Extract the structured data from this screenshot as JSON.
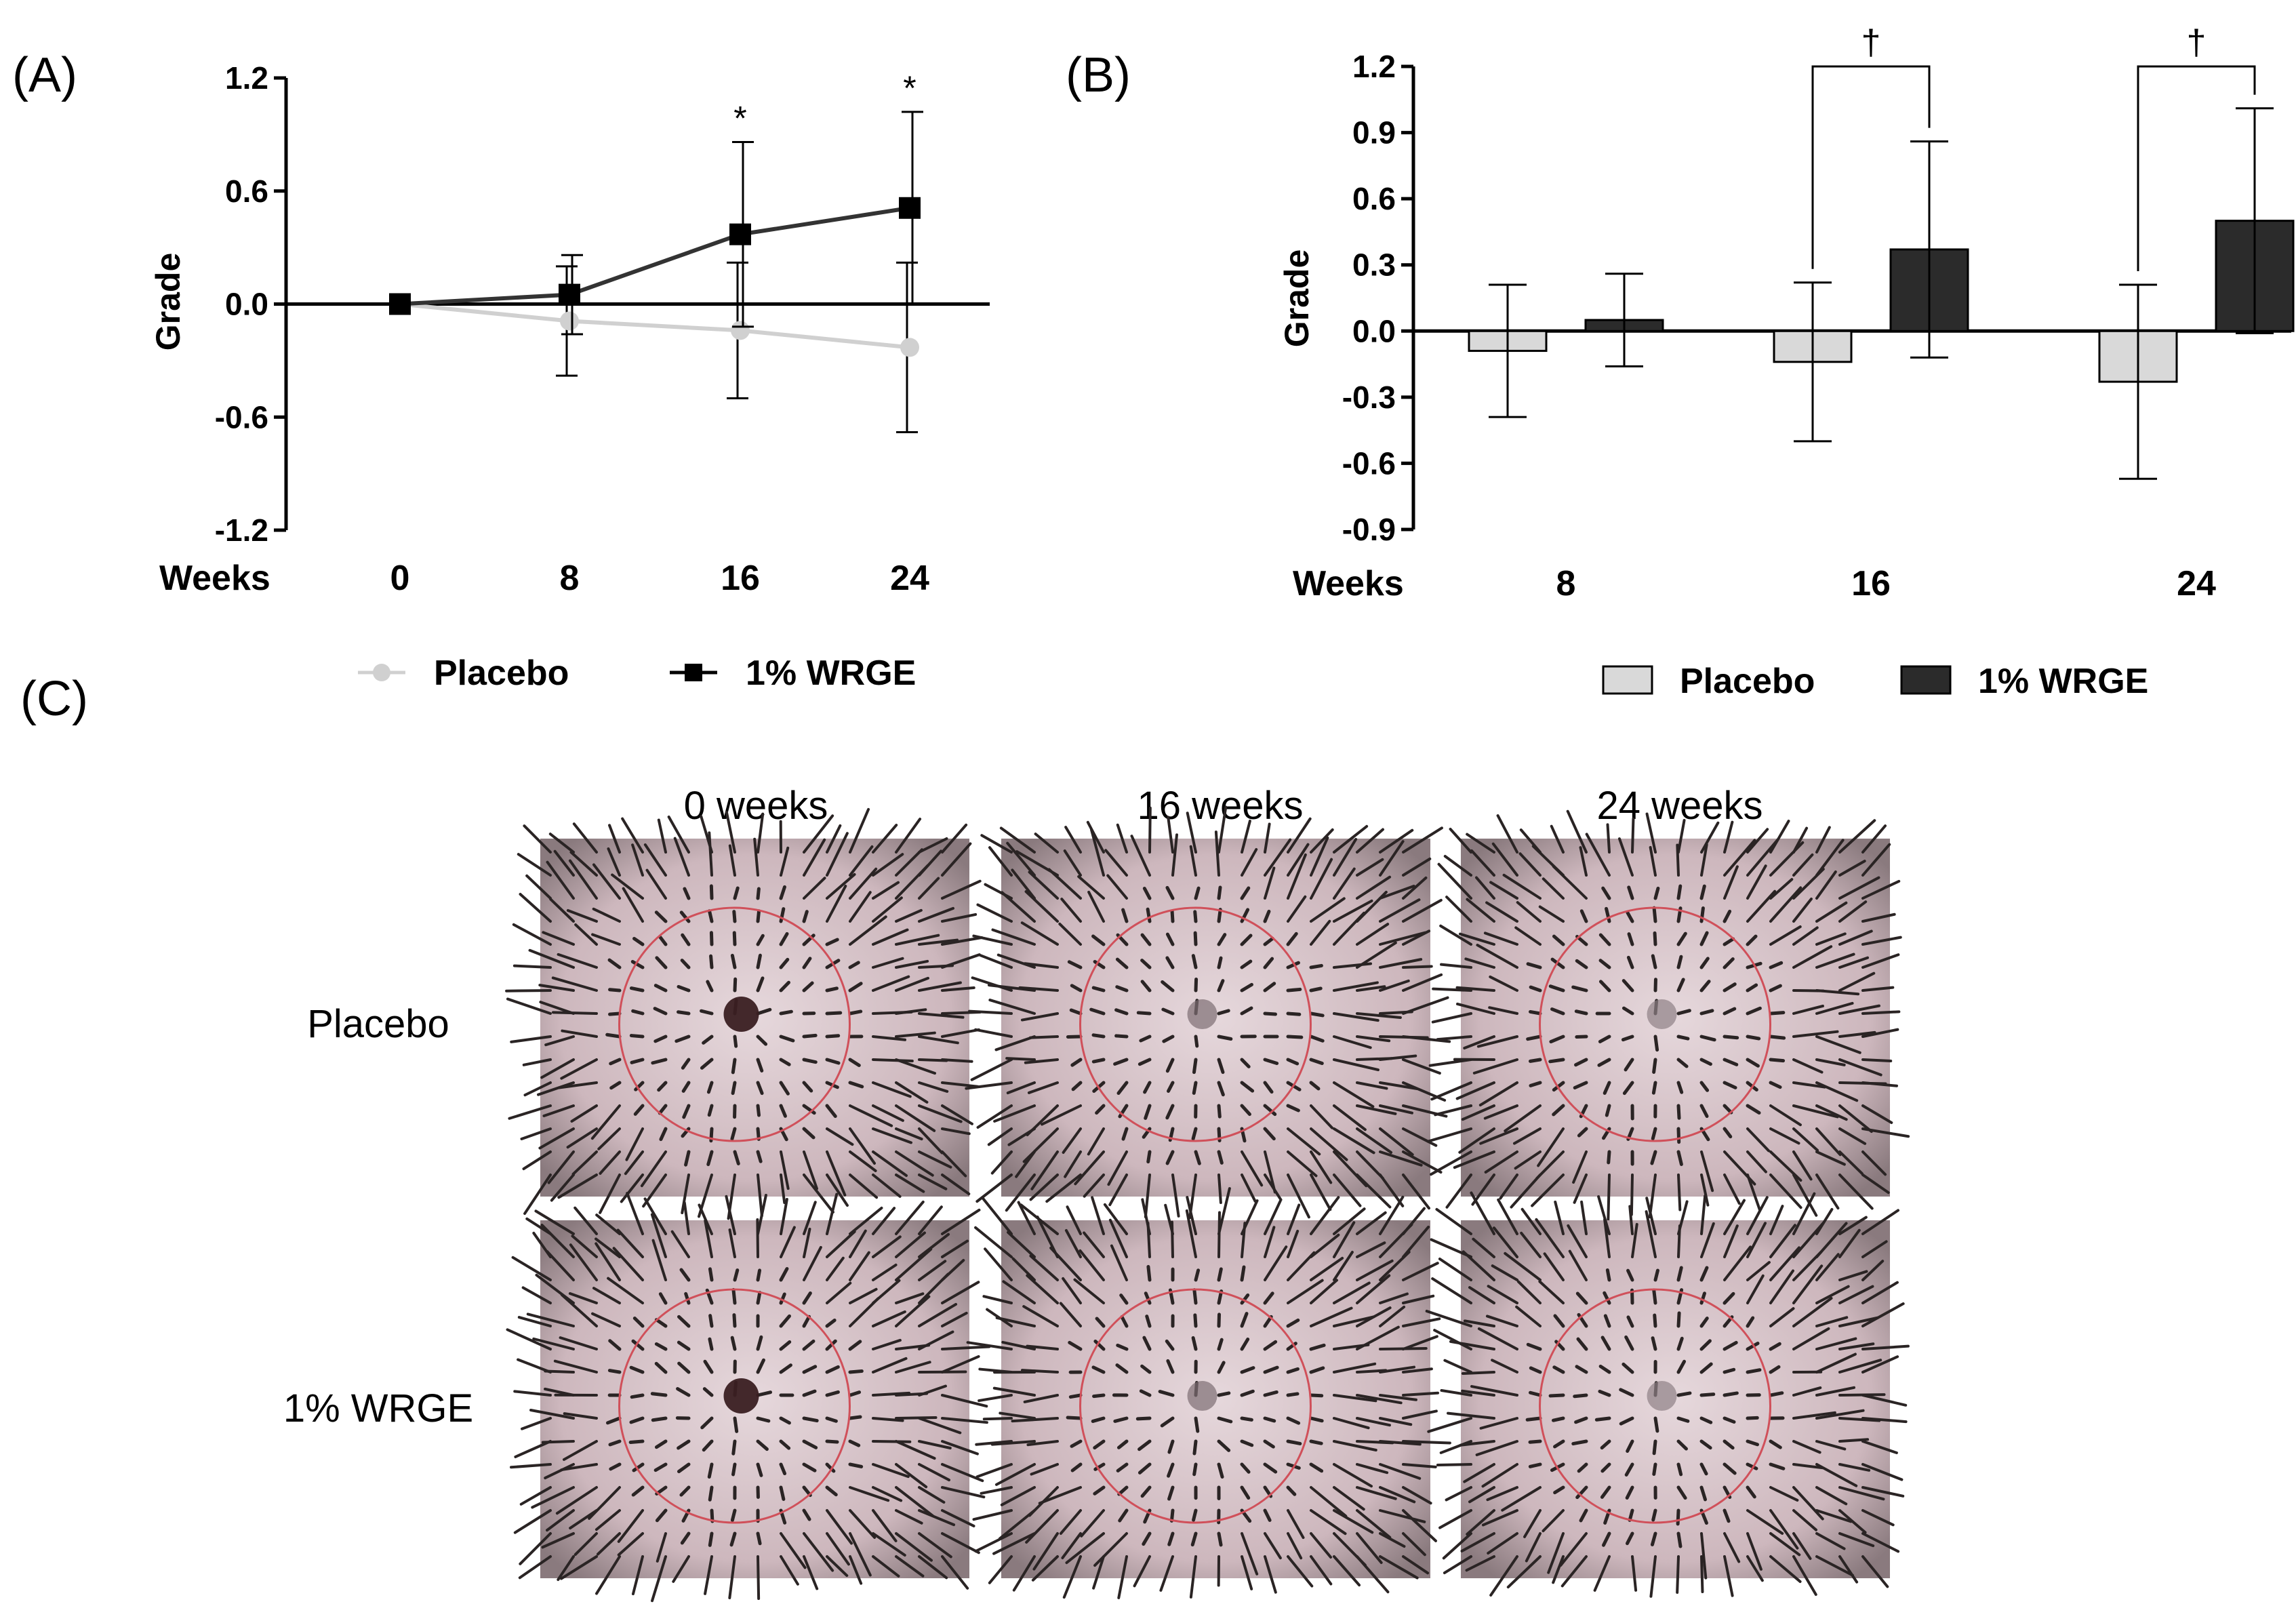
{
  "panel_labels": {
    "a": "(A)",
    "b": "(B)",
    "c": "(C)"
  },
  "colors": {
    "placebo_line": "#d0d0d0",
    "wrge_line": "#333333",
    "wrge_marker": "#000000",
    "placebo_bar": "#d9d9d9",
    "wrge_bar": "#2b2b2b",
    "scalp": "#d8c4c8",
    "hair": "#2a2424",
    "circle": "#d0505a"
  },
  "chart_data": [
    {
      "id": "A",
      "type": "line",
      "title": "",
      "xlabel": "Weeks",
      "ylabel": "Grade",
      "categories": [
        "0",
        "8",
        "16",
        "24"
      ],
      "ylim": [
        -1.2,
        1.2
      ],
      "yticks": [
        "1.2",
        "0.6",
        "0.0",
        "-0.6",
        "-1.2"
      ],
      "ytick_values": [
        1.2,
        0.6,
        0.0,
        -0.6,
        -1.2
      ],
      "series": [
        {
          "name": "Placebo",
          "values": [
            0.0,
            -0.09,
            -0.14,
            -0.23
          ],
          "err": [
            0.0,
            0.29,
            0.36,
            0.45
          ]
        },
        {
          "name": "1% WRGE",
          "values": [
            0.0,
            0.05,
            0.37,
            0.51
          ],
          "err": [
            0.0,
            0.21,
            0.49,
            0.51
          ]
        }
      ],
      "annotations": [
        {
          "category": "16",
          "text": "*"
        },
        {
          "category": "24",
          "text": "*"
        }
      ],
      "legend": [
        "Placebo",
        "1% WRGE"
      ]
    },
    {
      "id": "B",
      "type": "bar",
      "title": "",
      "xlabel": "Weeks",
      "ylabel": "Grade",
      "categories": [
        "8",
        "16",
        "24"
      ],
      "ylim": [
        -0.9,
        1.2
      ],
      "yticks": [
        "1.2",
        "0.9",
        "0.6",
        "0.3",
        "0.0",
        "-0.3",
        "-0.6",
        "-0.9"
      ],
      "ytick_values": [
        1.2,
        0.9,
        0.6,
        0.3,
        0.0,
        -0.3,
        -0.6,
        -0.9
      ],
      "series": [
        {
          "name": "Placebo",
          "values": [
            -0.09,
            -0.14,
            -0.23
          ],
          "err": [
            0.3,
            0.36,
            0.44
          ]
        },
        {
          "name": "1% WRGE",
          "values": [
            0.05,
            0.37,
            0.5
          ],
          "err": [
            0.21,
            0.49,
            0.51
          ]
        }
      ],
      "annotations": [
        {
          "category": "16",
          "text": "†"
        },
        {
          "category": "24",
          "text": "†"
        }
      ],
      "legend": [
        "Placebo",
        "1% WRGE"
      ]
    }
  ],
  "photos": {
    "column_titles": [
      "0 weeks",
      "16 weeks",
      "24 weeks"
    ],
    "row_labels": [
      "Placebo",
      "1% WRGE"
    ]
  }
}
